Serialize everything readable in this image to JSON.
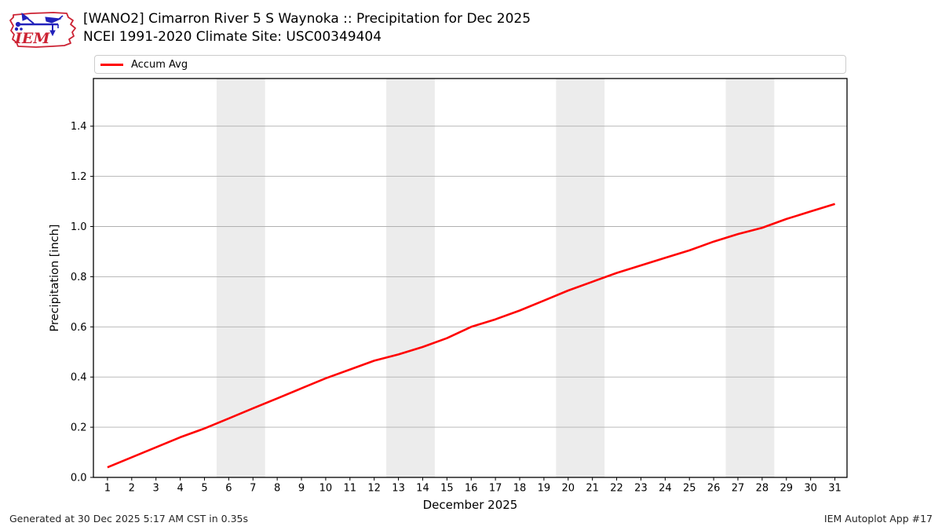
{
  "header": {
    "title_line1": "[WANO2] Cimarron River 5 S Waynoka :: Precipitation for Dec 2025",
    "title_line2": "NCEI 1991-2020 Climate Site: USC00349404",
    "logo_text": "IEM"
  },
  "legend": {
    "items": [
      {
        "label": "Accum Avg",
        "color": "#ff0000"
      }
    ]
  },
  "footer": {
    "left": "Generated at 30 Dec 2025 5:17 AM CST in 0.35s",
    "right": "IEM Autoplot App #17"
  },
  "colors": {
    "line": "#ff0000",
    "grid": "#b0b0b0",
    "weekend_band": "#ececec",
    "frame": "#000000",
    "logo_red": "#cc2233",
    "logo_blue": "#2222bb"
  },
  "chart_data": {
    "type": "line",
    "title": "[WANO2] Cimarron River 5 S Waynoka :: Precipitation for Dec 2025",
    "subtitle": "NCEI 1991-2020 Climate Site: USC00349404",
    "xlabel": "December 2025",
    "ylabel": "Precipitation [inch]",
    "legend_position": "top",
    "grid": "horizontal",
    "xlim": [
      0.42,
      31.5
    ],
    "ylim": [
      0,
      1.59
    ],
    "x_ticks": [
      1,
      2,
      3,
      4,
      5,
      6,
      7,
      8,
      9,
      10,
      11,
      12,
      13,
      14,
      15,
      16,
      17,
      18,
      19,
      20,
      21,
      22,
      23,
      24,
      25,
      26,
      27,
      28,
      29,
      30,
      31
    ],
    "y_ticks": [
      0.0,
      0.2,
      0.4,
      0.6,
      0.8,
      1.0,
      1.2,
      1.4
    ],
    "weekend_bands": [
      [
        5.5,
        7.5
      ],
      [
        12.5,
        14.5
      ],
      [
        19.5,
        21.5
      ],
      [
        26.5,
        28.5
      ]
    ],
    "band_color": "#ececec",
    "x": [
      1,
      2,
      3,
      4,
      5,
      6,
      7,
      8,
      9,
      10,
      11,
      12,
      13,
      14,
      15,
      16,
      17,
      18,
      19,
      20,
      21,
      22,
      23,
      24,
      25,
      26,
      27,
      28,
      29,
      30,
      31
    ],
    "series": [
      {
        "name": "Accum Avg",
        "color": "#ff0000",
        "values": [
          0.04,
          0.08,
          0.12,
          0.16,
          0.195,
          0.235,
          0.275,
          0.315,
          0.355,
          0.395,
          0.43,
          0.465,
          0.49,
          0.52,
          0.555,
          0.6,
          0.63,
          0.665,
          0.705,
          0.745,
          0.78,
          0.815,
          0.845,
          0.875,
          0.905,
          0.94,
          0.97,
          0.995,
          1.03,
          1.06,
          1.09
        ]
      }
    ]
  }
}
